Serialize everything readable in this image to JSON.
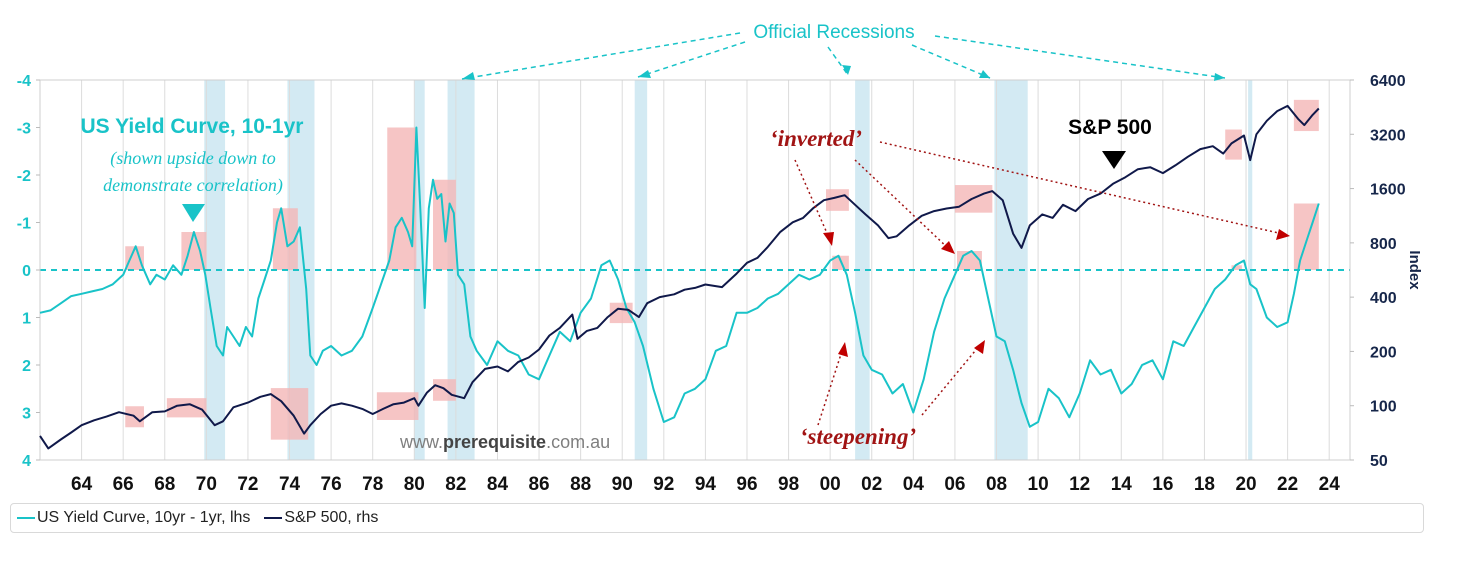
{
  "chart_data": {
    "type": "line",
    "title": "US Yield Curve, 10-1yr",
    "subtitle_lines": [
      "(shown upside down to",
      "demonstrate correlation)"
    ],
    "x_axis": {
      "range": [
        1962,
        2025
      ],
      "tick_labels": [
        "64",
        "66",
        "68",
        "70",
        "72",
        "74",
        "76",
        "78",
        "80",
        "82",
        "84",
        "86",
        "88",
        "90",
        "92",
        "94",
        "96",
        "98",
        "00",
        "02",
        "04",
        "06",
        "08",
        "10",
        "12",
        "14",
        "16",
        "18",
        "20",
        "22",
        "24"
      ],
      "tick_years": [
        1964,
        1966,
        1968,
        1970,
        1972,
        1974,
        1976,
        1978,
        1980,
        1982,
        1984,
        1986,
        1988,
        1990,
        1992,
        1994,
        1996,
        1998,
        2000,
        2002,
        2004,
        2006,
        2008,
        2010,
        2012,
        2014,
        2016,
        2018,
        2020,
        2022,
        2024
      ]
    },
    "y_left": {
      "label": "",
      "range_inverted": [
        -4,
        4
      ],
      "ticks": [
        -4,
        -3,
        -2,
        -1,
        0,
        1,
        2,
        3,
        4
      ],
      "tick_labels": [
        "-4",
        "-3",
        "-2",
        "-1",
        "0",
        "1",
        "2",
        "3",
        "4"
      ]
    },
    "y_right": {
      "label": "Index",
      "scale": "log2",
      "range": [
        50,
        6400
      ],
      "ticks": [
        50,
        100,
        200,
        400,
        800,
        1600,
        3200,
        6400
      ],
      "tick_labels": [
        "50",
        "100",
        "200",
        "400",
        "800",
        "1600",
        "3200",
        "6400"
      ]
    },
    "recessions": [
      [
        1969.9,
        1970.9
      ],
      [
        1973.9,
        1975.2
      ],
      [
        1980.0,
        1980.5
      ],
      [
        1981.6,
        1982.9
      ],
      [
        1990.6,
        1991.2
      ],
      [
        2001.2,
        2001.9
      ],
      [
        2007.9,
        2009.5
      ],
      [
        2020.1,
        2020.3
      ]
    ],
    "inversion_highlights_curve": [
      [
        1966.1,
        1967.0
      ],
      [
        1968.8,
        1970.0
      ],
      [
        1973.2,
        1974.4
      ],
      [
        1978.7,
        1980.1
      ],
      [
        1980.9,
        1982.0
      ],
      [
        2000.1,
        2000.9
      ],
      [
        2006.1,
        2007.3
      ],
      [
        2019.3,
        2019.8
      ],
      [
        2022.3,
        2023.5
      ]
    ],
    "inversion_highlights_sp": [
      [
        1966.1,
        1967.0
      ],
      [
        1968.1,
        1970.0
      ],
      [
        1973.1,
        1974.9
      ],
      [
        1978.2,
        1980.2
      ],
      [
        1980.9,
        1982.0
      ],
      [
        1989.4,
        1990.5
      ],
      [
        1999.8,
        2000.9
      ],
      [
        2006.0,
        2007.8
      ],
      [
        2019.0,
        2019.8
      ],
      [
        2022.3,
        2023.5
      ]
    ],
    "series": [
      {
        "name": "US Yield Curve, 10yr - 1yr, lhs",
        "axis": "left",
        "color": "#19c3c8",
        "x": [
          1962.0,
          1962.5,
          1963.0,
          1963.5,
          1964.0,
          1964.5,
          1965.0,
          1965.5,
          1966.0,
          1966.3,
          1966.6,
          1966.9,
          1967.3,
          1967.6,
          1968.0,
          1968.4,
          1968.8,
          1969.1,
          1969.4,
          1969.7,
          1969.95,
          1970.2,
          1970.5,
          1970.8,
          1971.0,
          1971.3,
          1971.6,
          1971.9,
          1972.2,
          1972.5,
          1972.8,
          1973.1,
          1973.4,
          1973.6,
          1973.9,
          1974.2,
          1974.5,
          1974.8,
          1975.0,
          1975.3,
          1975.6,
          1976.0,
          1976.5,
          1977.0,
          1977.5,
          1978.0,
          1978.4,
          1978.8,
          1979.1,
          1979.4,
          1979.7,
          1979.9,
          1980.1,
          1980.3,
          1980.5,
          1980.7,
          1980.9,
          1981.1,
          1981.3,
          1981.5,
          1981.7,
          1981.9,
          1982.1,
          1982.4,
          1982.7,
          1983.0,
          1983.5,
          1984.0,
          1984.5,
          1985.0,
          1985.5,
          1986.0,
          1986.5,
          1987.0,
          1987.5,
          1988.0,
          1988.5,
          1989.0,
          1989.4,
          1989.8,
          1990.2,
          1990.6,
          1991.0,
          1991.5,
          1992.0,
          1992.5,
          1993.0,
          1993.5,
          1994.0,
          1994.5,
          1995.0,
          1995.5,
          1996.0,
          1996.5,
          1997.0,
          1997.5,
          1998.0,
          1998.5,
          1999.0,
          1999.5,
          2000.0,
          2000.4,
          2000.8,
          2001.2,
          2001.6,
          2002.0,
          2002.5,
          2003.0,
          2003.5,
          2004.0,
          2004.5,
          2005.0,
          2005.5,
          2006.0,
          2006.4,
          2006.8,
          2007.2,
          2007.6,
          2008.0,
          2008.4,
          2008.8,
          2009.2,
          2009.6,
          2010.0,
          2010.5,
          2011.0,
          2011.5,
          2012.0,
          2012.5,
          2013.0,
          2013.5,
          2014.0,
          2014.5,
          2015.0,
          2015.5,
          2016.0,
          2016.5,
          2017.0,
          2017.5,
          2018.0,
          2018.5,
          2019.0,
          2019.5,
          2019.9,
          2020.2,
          2020.5,
          2021.0,
          2021.5,
          2022.0,
          2022.3,
          2022.6,
          2022.9,
          2023.2,
          2023.5
        ],
        "values": [
          0.9,
          0.85,
          0.7,
          0.55,
          0.5,
          0.45,
          0.4,
          0.3,
          0.1,
          -0.2,
          -0.5,
          -0.1,
          0.3,
          0.1,
          0.2,
          -0.1,
          0.1,
          -0.3,
          -0.8,
          -0.4,
          0.1,
          0.8,
          1.6,
          1.8,
          1.2,
          1.4,
          1.6,
          1.2,
          1.4,
          0.6,
          0.2,
          -0.2,
          -1.0,
          -1.3,
          -0.5,
          -0.6,
          -0.9,
          0.4,
          1.8,
          2.0,
          1.7,
          1.6,
          1.8,
          1.7,
          1.4,
          0.8,
          0.3,
          -0.2,
          -0.9,
          -1.1,
          -0.8,
          -0.5,
          -3.0,
          -1.2,
          0.8,
          -1.3,
          -1.9,
          -1.5,
          -1.6,
          -0.6,
          -1.4,
          -1.2,
          0.1,
          0.3,
          1.4,
          1.7,
          2.0,
          1.5,
          1.7,
          1.8,
          2.2,
          2.3,
          1.8,
          1.3,
          1.5,
          0.9,
          0.6,
          -0.1,
          -0.2,
          0.2,
          0.8,
          1.1,
          1.6,
          2.5,
          3.2,
          3.1,
          2.6,
          2.5,
          2.3,
          1.7,
          1.6,
          0.9,
          0.9,
          0.8,
          0.6,
          0.5,
          0.3,
          0.1,
          0.2,
          0.1,
          -0.2,
          -0.3,
          0.1,
          0.9,
          1.8,
          2.1,
          2.2,
          2.6,
          2.4,
          3.0,
          2.3,
          1.3,
          0.6,
          0.1,
          -0.3,
          -0.4,
          -0.2,
          0.6,
          1.4,
          1.5,
          2.1,
          2.8,
          3.3,
          3.2,
          2.5,
          2.7,
          3.1,
          2.6,
          1.9,
          2.2,
          2.1,
          2.6,
          2.4,
          2.0,
          1.9,
          2.3,
          1.5,
          1.6,
          1.2,
          0.8,
          0.4,
          0.2,
          -0.1,
          -0.2,
          0.3,
          0.4,
          1.0,
          1.2,
          1.1,
          0.5,
          -0.2,
          -0.6,
          -1.0,
          -1.4
        ]
      },
      {
        "name": "S&P 500, rhs",
        "axis": "right",
        "color": "#10194a",
        "x": [
          1962.0,
          1962.4,
          1963.0,
          1963.5,
          1964.0,
          1964.6,
          1965.2,
          1965.8,
          1966.5,
          1966.8,
          1967.4,
          1968.0,
          1968.6,
          1969.2,
          1969.8,
          1970.4,
          1970.8,
          1971.3,
          1972.0,
          1972.6,
          1973.1,
          1973.6,
          1974.2,
          1974.7,
          1975.0,
          1975.5,
          1976.0,
          1976.5,
          1977.0,
          1977.5,
          1978.0,
          1978.5,
          1979.0,
          1979.5,
          1980.0,
          1980.2,
          1980.6,
          1981.0,
          1981.4,
          1981.8,
          1982.4,
          1982.8,
          1983.4,
          1984.0,
          1984.5,
          1985.0,
          1985.5,
          1986.0,
          1986.5,
          1987.0,
          1987.6,
          1987.85,
          1988.3,
          1988.8,
          1989.3,
          1989.8,
          1990.3,
          1990.8,
          1991.2,
          1991.8,
          1992.5,
          1993.0,
          1993.5,
          1994.0,
          1994.8,
          1995.5,
          1996.0,
          1996.5,
          1997.0,
          1997.6,
          1998.2,
          1998.7,
          1999.2,
          1999.7,
          2000.2,
          2000.7,
          2001.2,
          2001.7,
          2002.3,
          2002.8,
          2003.2,
          2003.8,
          2004.4,
          2005.0,
          2005.6,
          2006.2,
          2006.8,
          2007.4,
          2007.8,
          2008.3,
          2008.8,
          2009.2,
          2009.6,
          2010.2,
          2010.7,
          2011.2,
          2011.8,
          2012.4,
          2013.0,
          2013.6,
          2014.2,
          2014.8,
          2015.4,
          2016.0,
          2016.6,
          2017.2,
          2017.8,
          2018.4,
          2018.9,
          2019.3,
          2019.9,
          2020.2,
          2020.5,
          2021.0,
          2021.5,
          2022.0,
          2022.5,
          2022.8,
          2023.2,
          2023.5
        ],
        "values": [
          68,
          58,
          65,
          71,
          78,
          83,
          87,
          92,
          88,
          82,
          92,
          93,
          100,
          102,
          95,
          78,
          82,
          98,
          104,
          112,
          116,
          106,
          88,
          70,
          78,
          90,
          100,
          103,
          100,
          96,
          90,
          96,
          102,
          104,
          110,
          100,
          118,
          130,
          125,
          115,
          110,
          135,
          160,
          165,
          155,
          175,
          185,
          205,
          245,
          270,
          320,
          235,
          260,
          270,
          310,
          345,
          340,
          310,
          370,
          400,
          415,
          440,
          450,
          470,
          455,
          540,
          620,
          660,
          760,
          920,
          1040,
          1100,
          1250,
          1380,
          1420,
          1470,
          1300,
          1150,
          1000,
          850,
          870,
          1000,
          1130,
          1200,
          1240,
          1270,
          1400,
          1500,
          1550,
          1380,
          900,
          750,
          1000,
          1150,
          1100,
          1300,
          1200,
          1400,
          1500,
          1700,
          1850,
          2050,
          2100,
          1950,
          2150,
          2400,
          2650,
          2750,
          2500,
          2850,
          3150,
          2300,
          3200,
          3800,
          4300,
          4600,
          3900,
          3600,
          4100,
          4450
        ]
      }
    ],
    "annotations": {
      "official_recessions": "Official Recessions",
      "inverted": "‘inverted’",
      "steepening": "‘steepening’",
      "sp500": "S&P 500",
      "watermark_prefix": "www.",
      "watermark_brand": "prerequisite",
      "watermark_suffix": ".com.au"
    },
    "legend": [
      {
        "label": "US Yield Curve, 10yr - 1yr, lhs",
        "color": "#19c3c8"
      },
      {
        "label": "S&P 500, rhs",
        "color": "#10194a"
      }
    ]
  }
}
